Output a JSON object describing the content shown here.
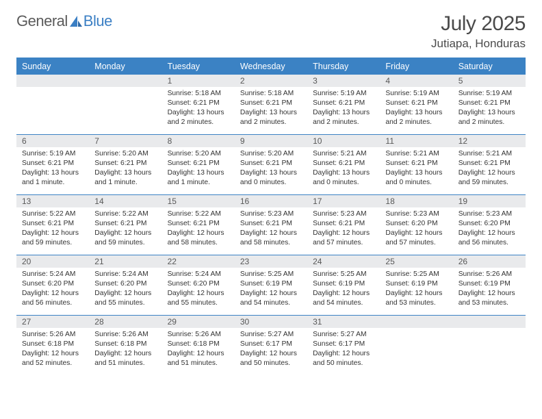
{
  "logo": {
    "text1": "General",
    "text2": "Blue"
  },
  "title": "July 2025",
  "location": "Jutiapa, Honduras",
  "header_color": "#3b82c4",
  "daynum_bg": "#e9eaec",
  "days": [
    "Sunday",
    "Monday",
    "Tuesday",
    "Wednesday",
    "Thursday",
    "Friday",
    "Saturday"
  ],
  "weeks": [
    [
      {
        "n": "",
        "sr": "",
        "ss": "",
        "dl": ""
      },
      {
        "n": "",
        "sr": "",
        "ss": "",
        "dl": ""
      },
      {
        "n": "1",
        "sr": "5:18 AM",
        "ss": "6:21 PM",
        "dl": "13 hours and 2 minutes."
      },
      {
        "n": "2",
        "sr": "5:18 AM",
        "ss": "6:21 PM",
        "dl": "13 hours and 2 minutes."
      },
      {
        "n": "3",
        "sr": "5:19 AM",
        "ss": "6:21 PM",
        "dl": "13 hours and 2 minutes."
      },
      {
        "n": "4",
        "sr": "5:19 AM",
        "ss": "6:21 PM",
        "dl": "13 hours and 2 minutes."
      },
      {
        "n": "5",
        "sr": "5:19 AM",
        "ss": "6:21 PM",
        "dl": "13 hours and 2 minutes."
      }
    ],
    [
      {
        "n": "6",
        "sr": "5:19 AM",
        "ss": "6:21 PM",
        "dl": "13 hours and 1 minute."
      },
      {
        "n": "7",
        "sr": "5:20 AM",
        "ss": "6:21 PM",
        "dl": "13 hours and 1 minute."
      },
      {
        "n": "8",
        "sr": "5:20 AM",
        "ss": "6:21 PM",
        "dl": "13 hours and 1 minute."
      },
      {
        "n": "9",
        "sr": "5:20 AM",
        "ss": "6:21 PM",
        "dl": "13 hours and 0 minutes."
      },
      {
        "n": "10",
        "sr": "5:21 AM",
        "ss": "6:21 PM",
        "dl": "13 hours and 0 minutes."
      },
      {
        "n": "11",
        "sr": "5:21 AM",
        "ss": "6:21 PM",
        "dl": "13 hours and 0 minutes."
      },
      {
        "n": "12",
        "sr": "5:21 AM",
        "ss": "6:21 PM",
        "dl": "12 hours and 59 minutes."
      }
    ],
    [
      {
        "n": "13",
        "sr": "5:22 AM",
        "ss": "6:21 PM",
        "dl": "12 hours and 59 minutes."
      },
      {
        "n": "14",
        "sr": "5:22 AM",
        "ss": "6:21 PM",
        "dl": "12 hours and 59 minutes."
      },
      {
        "n": "15",
        "sr": "5:22 AM",
        "ss": "6:21 PM",
        "dl": "12 hours and 58 minutes."
      },
      {
        "n": "16",
        "sr": "5:23 AM",
        "ss": "6:21 PM",
        "dl": "12 hours and 58 minutes."
      },
      {
        "n": "17",
        "sr": "5:23 AM",
        "ss": "6:21 PM",
        "dl": "12 hours and 57 minutes."
      },
      {
        "n": "18",
        "sr": "5:23 AM",
        "ss": "6:20 PM",
        "dl": "12 hours and 57 minutes."
      },
      {
        "n": "19",
        "sr": "5:23 AM",
        "ss": "6:20 PM",
        "dl": "12 hours and 56 minutes."
      }
    ],
    [
      {
        "n": "20",
        "sr": "5:24 AM",
        "ss": "6:20 PM",
        "dl": "12 hours and 56 minutes."
      },
      {
        "n": "21",
        "sr": "5:24 AM",
        "ss": "6:20 PM",
        "dl": "12 hours and 55 minutes."
      },
      {
        "n": "22",
        "sr": "5:24 AM",
        "ss": "6:20 PM",
        "dl": "12 hours and 55 minutes."
      },
      {
        "n": "23",
        "sr": "5:25 AM",
        "ss": "6:19 PM",
        "dl": "12 hours and 54 minutes."
      },
      {
        "n": "24",
        "sr": "5:25 AM",
        "ss": "6:19 PM",
        "dl": "12 hours and 54 minutes."
      },
      {
        "n": "25",
        "sr": "5:25 AM",
        "ss": "6:19 PM",
        "dl": "12 hours and 53 minutes."
      },
      {
        "n": "26",
        "sr": "5:26 AM",
        "ss": "6:19 PM",
        "dl": "12 hours and 53 minutes."
      }
    ],
    [
      {
        "n": "27",
        "sr": "5:26 AM",
        "ss": "6:18 PM",
        "dl": "12 hours and 52 minutes."
      },
      {
        "n": "28",
        "sr": "5:26 AM",
        "ss": "6:18 PM",
        "dl": "12 hours and 51 minutes."
      },
      {
        "n": "29",
        "sr": "5:26 AM",
        "ss": "6:18 PM",
        "dl": "12 hours and 51 minutes."
      },
      {
        "n": "30",
        "sr": "5:27 AM",
        "ss": "6:17 PM",
        "dl": "12 hours and 50 minutes."
      },
      {
        "n": "31",
        "sr": "5:27 AM",
        "ss": "6:17 PM",
        "dl": "12 hours and 50 minutes."
      },
      {
        "n": "",
        "sr": "",
        "ss": "",
        "dl": ""
      },
      {
        "n": "",
        "sr": "",
        "ss": "",
        "dl": ""
      }
    ]
  ],
  "labels": {
    "sunrise": "Sunrise:",
    "sunset": "Sunset:",
    "daylight": "Daylight:"
  }
}
